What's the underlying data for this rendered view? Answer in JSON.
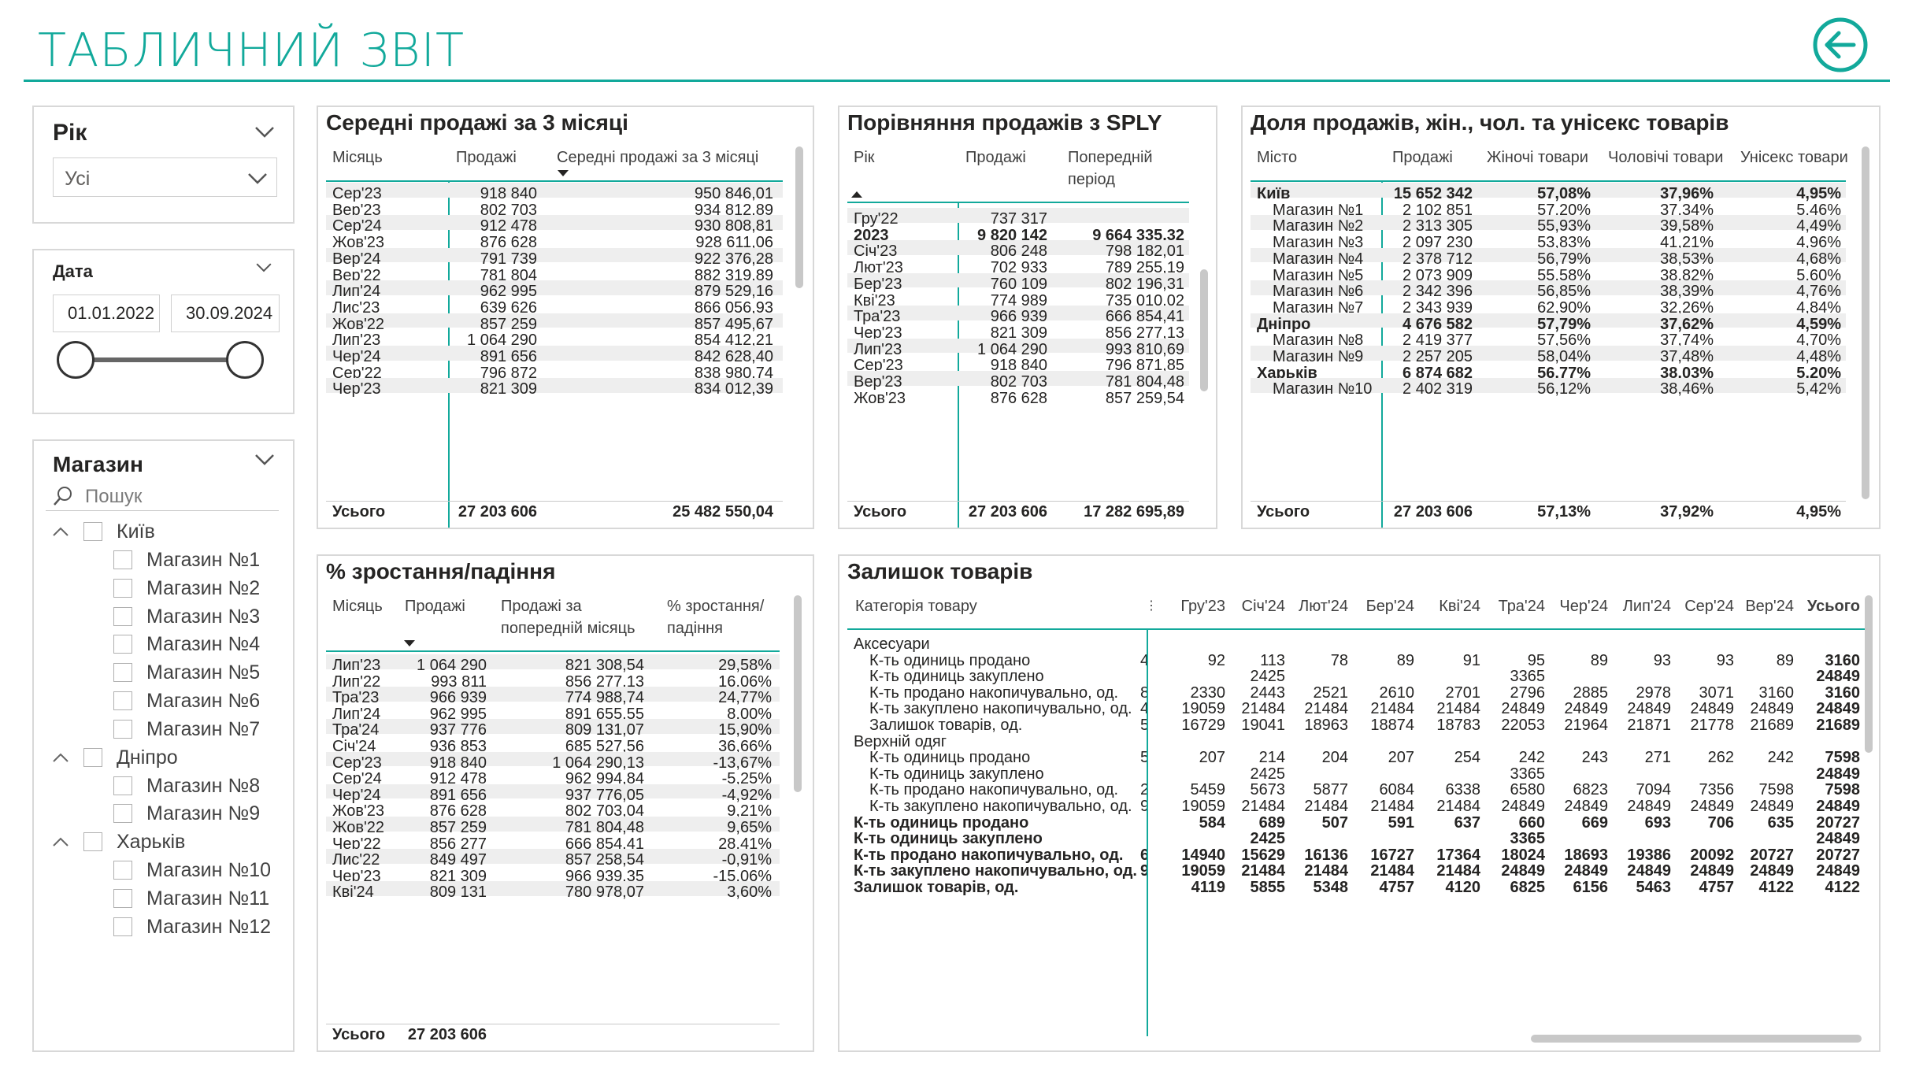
{
  "page": {
    "title": "ТАБЛИЧНИЙ ЗВІТ",
    "back_icon": "arrow-left-circle-icon"
  },
  "colors": {
    "accent": "#12A99B"
  },
  "year_slicer": {
    "title": "Рік",
    "value": "Усі"
  },
  "date_slicer": {
    "title": "Дата",
    "start": "01.01.2022",
    "end": "30.09.2024",
    "range_fraction": [
      0,
      1
    ]
  },
  "store_slicer": {
    "title": "Магазин",
    "search_placeholder": "Пошук",
    "tree": [
      {
        "label": "Київ",
        "children": [
          "Магазин №1",
          "Магазин №2",
          "Магазин №3",
          "Магазин №4",
          "Магазин №5",
          "Магазин №6",
          "Магазин №7"
        ]
      },
      {
        "label": "Дніпро",
        "children": [
          "Магазин №8",
          "Магазин №9"
        ]
      },
      {
        "label": "Харьків",
        "children": [
          "Магазин №10",
          "Магазин №11",
          "Магазин №12"
        ]
      }
    ]
  },
  "avg_sales": {
    "title": "Середні продажі за 3 місяці",
    "headers": [
      "Місяць",
      "Продажі",
      "Середні продажі за 3 місяці"
    ],
    "rows": [
      [
        "Сер'23",
        "918 840",
        "950 846,01"
      ],
      [
        "Вер'23",
        "802 703",
        "934 812,89"
      ],
      [
        "Сер'24",
        "912 478",
        "930 808,81"
      ],
      [
        "Жов'23",
        "876 628",
        "928 611,06"
      ],
      [
        "Вер'24",
        "791 739",
        "922 376,28"
      ],
      [
        "Вер'22",
        "781 804",
        "882 319,89"
      ],
      [
        "Лип'24",
        "962 995",
        "879 529,16"
      ],
      [
        "Лис'23",
        "639 626",
        "866 056,93"
      ],
      [
        "Жов'22",
        "857 259",
        "857 495,67"
      ],
      [
        "Лип'23",
        "1 064 290",
        "854 412,21"
      ],
      [
        "Чер'24",
        "891 656",
        "842 628,40"
      ],
      [
        "Сер'22",
        "796 872",
        "838 980,74"
      ],
      [
        "Чер'23",
        "821 309",
        "834 012,39"
      ]
    ],
    "total": [
      "Усього",
      "27 203 606",
      "25 482 550,04"
    ]
  },
  "sply": {
    "title": "Порівняння продажів з SPLY",
    "headers": [
      "Рік",
      "Продажі",
      "Попередній",
      "період"
    ],
    "rows": [
      [
        "Гру'22",
        "737 317",
        "",
        false
      ],
      [
        "2023",
        "9 820 142",
        "9 664 335,32",
        true
      ],
      [
        "Січ'23",
        "806 248",
        "798 182,01",
        false
      ],
      [
        "Лют'23",
        "702 933",
        "789 255,19",
        false
      ],
      [
        "Бер'23",
        "760 109",
        "802 196,31",
        false
      ],
      [
        "Кві'23",
        "774 989",
        "735 010,02",
        false
      ],
      [
        "Тра'23",
        "966 939",
        "666 854,41",
        false
      ],
      [
        "Чер'23",
        "821 309",
        "856 277,13",
        false
      ],
      [
        "Лип'23",
        "1 064 290",
        "993 810,69",
        false
      ],
      [
        "Сер'23",
        "918 840",
        "796 871,85",
        false
      ],
      [
        "Вер'23",
        "802 703",
        "781 804,48",
        false
      ],
      [
        "Жов'23",
        "876 628",
        "857 259,54",
        false
      ]
    ],
    "total": [
      "Усього",
      "27 203 606",
      "17 282 695,89"
    ]
  },
  "share": {
    "title": "Доля продажів, жін., чол. та унісекс товарів",
    "headers": [
      "Місто",
      "Продажі",
      "Жіночі товари",
      "Чоловічі товари",
      "Унісекс товари"
    ],
    "rows": [
      [
        "Київ",
        "15 652 342",
        "57,08%",
        "37,96%",
        "4,95%",
        true
      ],
      [
        "Магазин №1",
        "2 102 851",
        "57,20%",
        "37,34%",
        "5,46%",
        false
      ],
      [
        "Магазин №2",
        "2 313 305",
        "55,93%",
        "39,58%",
        "4,49%",
        false
      ],
      [
        "Магазин №3",
        "2 097 230",
        "53,83%",
        "41,21%",
        "4,96%",
        false
      ],
      [
        "Магазин №4",
        "2 378 712",
        "56,79%",
        "38,53%",
        "4,68%",
        false
      ],
      [
        "Магазин №5",
        "2 073 909",
        "55,58%",
        "38,82%",
        "5,60%",
        false
      ],
      [
        "Магазин №6",
        "2 342 396",
        "56,85%",
        "38,39%",
        "4,76%",
        false
      ],
      [
        "Магазин №7",
        "2 343 939",
        "62,90%",
        "32,26%",
        "4,84%",
        false
      ],
      [
        "Дніпро",
        "4 676 582",
        "57,79%",
        "37,62%",
        "4,59%",
        true
      ],
      [
        "Магазин №8",
        "2 419 377",
        "57,56%",
        "37,74%",
        "4,70%",
        false
      ],
      [
        "Магазин №9",
        "2 257 205",
        "58,04%",
        "37,48%",
        "4,48%",
        false
      ],
      [
        "Харьків",
        "6 874 682",
        "56,77%",
        "38,03%",
        "5,20%",
        true
      ],
      [
        "Магазин №10",
        "2 402 319",
        "56,12%",
        "38,46%",
        "5,42%",
        false
      ]
    ],
    "total": [
      "Усього",
      "27 203 606",
      "57,13%",
      "37,92%",
      "4,95%"
    ]
  },
  "growth": {
    "title": "% зростання/падіння",
    "headers": [
      "Місяць",
      "Продажі",
      "Продажі за",
      "попередній місяць",
      "% зростання/",
      "падіння"
    ],
    "rows": [
      [
        "Лип'23",
        "1 064 290",
        "821 308,54",
        "29,58%"
      ],
      [
        "Лип'22",
        "993 811",
        "856 277,13",
        "16,06%"
      ],
      [
        "Тра'23",
        "966 939",
        "774 988,74",
        "24,77%"
      ],
      [
        "Лип'24",
        "962 995",
        "891 655,55",
        "8,00%"
      ],
      [
        "Тра'24",
        "937 776",
        "809 131,07",
        "15,90%"
      ],
      [
        "Січ'24",
        "936 853",
        "685 527,56",
        "36,66%"
      ],
      [
        "Сер'23",
        "918 840",
        "1 064 290,13",
        "-13,67%"
      ],
      [
        "Сер'24",
        "912 478",
        "962 994,84",
        "-5,25%"
      ],
      [
        "Чер'24",
        "891 656",
        "937 776,05",
        "-4,92%"
      ],
      [
        "Жов'23",
        "876 628",
        "802 703,04",
        "9,21%"
      ],
      [
        "Жов'22",
        "857 259",
        "781 804,48",
        "9,65%"
      ],
      [
        "Чер'22",
        "856 277",
        "666 854,41",
        "28,41%"
      ],
      [
        "Лис'22",
        "849 497",
        "857 258,54",
        "-0,91%"
      ],
      [
        "Чер'23",
        "821 309",
        "966 939,35",
        "-15,06%"
      ],
      [
        "Кві'24",
        "809 131",
        "780 978,07",
        "3,60%"
      ]
    ],
    "total": [
      "Усього",
      "27 203 606",
      "",
      ""
    ]
  },
  "stock": {
    "title": "Залишок товарів",
    "category_header": "Категорія товару",
    "months": [
      "Гру'23",
      "Січ'24",
      "Лют'24",
      "Бер'24",
      "Кві'24",
      "Тра'24",
      "Чер'24",
      "Лип'24",
      "Сер'24",
      "Вер'24",
      "Усього"
    ],
    "rows": [
      {
        "label": "Аксесуари",
        "level": 0,
        "bold": false,
        "cut": "",
        "values": [
          "",
          "",
          "",
          "",
          "",
          "",
          "",
          "",
          "",
          "",
          ""
        ]
      },
      {
        "label": "К-ть одиниць продано",
        "level": 1,
        "bold": false,
        "cut": "4",
        "values": [
          "92",
          "113",
          "78",
          "89",
          "91",
          "95",
          "89",
          "93",
          "93",
          "89",
          "3160"
        ]
      },
      {
        "label": "К-ть одиниць закуплено",
        "level": 1,
        "bold": false,
        "cut": "",
        "values": [
          "",
          "2425",
          "",
          "",
          "",
          "3365",
          "",
          "",
          "",
          "",
          "24849"
        ]
      },
      {
        "label": "К-ть продано накопичувально, од.",
        "level": 1,
        "bold": false,
        "cut": "8",
        "values": [
          "2330",
          "2443",
          "2521",
          "2610",
          "2701",
          "2796",
          "2885",
          "2978",
          "3071",
          "3160",
          "3160"
        ]
      },
      {
        "label": "К-ть закуплено накопичувально, од.",
        "level": 1,
        "bold": false,
        "cut": "4",
        "values": [
          "19059",
          "21484",
          "21484",
          "21484",
          "21484",
          "24849",
          "24849",
          "24849",
          "24849",
          "24849",
          "24849"
        ]
      },
      {
        "label": "Залишок товарів, од.",
        "level": 1,
        "bold": false,
        "cut": "5",
        "values": [
          "16729",
          "19041",
          "18963",
          "18874",
          "18783",
          "22053",
          "21964",
          "21871",
          "21778",
          "21689",
          "21689"
        ]
      },
      {
        "label": "Верхній одяг",
        "level": 0,
        "bold": false,
        "cut": "",
        "values": [
          "",
          "",
          "",
          "",
          "",
          "",
          "",
          "",
          "",
          "",
          ""
        ]
      },
      {
        "label": "К-ть одиниць продано",
        "level": 1,
        "bold": false,
        "cut": "5",
        "values": [
          "207",
          "214",
          "204",
          "207",
          "254",
          "242",
          "243",
          "271",
          "262",
          "242",
          "7598"
        ]
      },
      {
        "label": "К-ть одиниць закуплено",
        "level": 1,
        "bold": false,
        "cut": "",
        "values": [
          "",
          "2425",
          "",
          "",
          "",
          "3365",
          "",
          "",
          "",
          "",
          "24849"
        ]
      },
      {
        "label": "К-ть продано накопичувально, од.",
        "level": 1,
        "bold": false,
        "cut": "2",
        "values": [
          "5459",
          "5673",
          "5877",
          "6084",
          "6338",
          "6580",
          "6823",
          "7094",
          "7356",
          "7598",
          "7598"
        ]
      },
      {
        "label": "К-ть закуплено накопичувально, од.",
        "level": 1,
        "bold": false,
        "cut": "9",
        "values": [
          "19059",
          "21484",
          "21484",
          "21484",
          "21484",
          "24849",
          "24849",
          "24849",
          "24849",
          "24849",
          "24849"
        ]
      },
      {
        "label": "К-ть одиниць продано",
        "level": 0,
        "bold": true,
        "cut": "",
        "values": [
          "584",
          "689",
          "507",
          "591",
          "637",
          "660",
          "669",
          "693",
          "706",
          "635",
          "20727"
        ]
      },
      {
        "label": "К-ть одиниць закуплено",
        "level": 0,
        "bold": true,
        "cut": "",
        "values": [
          "",
          "2425",
          "",
          "",
          "",
          "3365",
          "",
          "",
          "",
          "",
          "24849"
        ]
      },
      {
        "label": "К-ть продано накопичувально, од.",
        "level": 0,
        "bold": true,
        "cut": "6",
        "values": [
          "14940",
          "15629",
          "16136",
          "16727",
          "17364",
          "18024",
          "18693",
          "19386",
          "20092",
          "20727",
          "20727"
        ]
      },
      {
        "label": "К-ть закуплено накопичувально, од.",
        "level": 0,
        "bold": true,
        "cut": "9",
        "values": [
          "19059",
          "21484",
          "21484",
          "21484",
          "21484",
          "24849",
          "24849",
          "24849",
          "24849",
          "24849",
          "24849"
        ]
      },
      {
        "label": "Залишок товарів, од.",
        "level": 0,
        "bold": true,
        "cut": "",
        "values": [
          "4119",
          "5855",
          "5348",
          "4757",
          "4120",
          "6825",
          "6156",
          "5463",
          "4757",
          "4122",
          "4122"
        ]
      }
    ]
  }
}
